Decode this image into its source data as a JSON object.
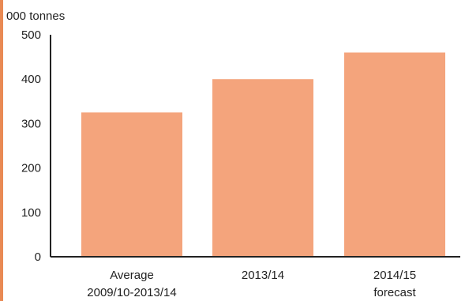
{
  "chart_data": {
    "type": "bar",
    "ylabel": "000 tonnes",
    "ylim": [
      0,
      500
    ],
    "yticks": [
      0,
      100,
      200,
      300,
      400,
      500
    ],
    "categories": [
      [
        "Average",
        "2009/10-2013/14"
      ],
      [
        "2013/14"
      ],
      [
        "2014/15",
        "forecast"
      ]
    ],
    "values": [
      325,
      400,
      460
    ],
    "bar_color": "#f4a47c",
    "axis_color": "#222222",
    "accent_color": "#e98a54",
    "grid": false
  }
}
